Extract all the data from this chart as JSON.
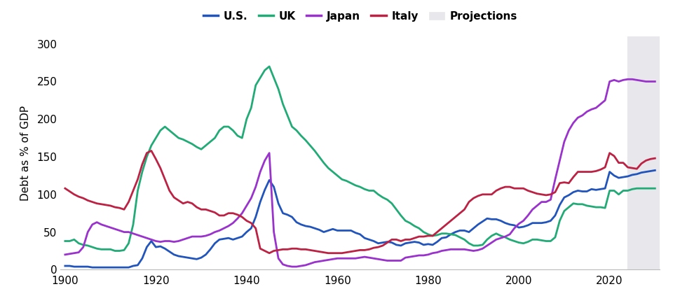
{
  "ylabel": "Debt as % of GDP",
  "colors": {
    "US": "#2255bb",
    "UK": "#22aa77",
    "Japan": "#9933cc",
    "Italy": "#bb2244"
  },
  "projection_start": 2024,
  "projection_end": 2031,
  "projection_color": "#e8e8ec",
  "ylim": [
    0,
    310
  ],
  "xlim": [
    1899,
    2031
  ],
  "yticks": [
    0,
    50,
    100,
    150,
    200,
    250,
    300
  ],
  "xticks": [
    1900,
    1920,
    1940,
    1960,
    1980,
    2000,
    2020
  ],
  "US": {
    "years": [
      1900,
      1901,
      1902,
      1903,
      1904,
      1905,
      1906,
      1907,
      1908,
      1909,
      1910,
      1911,
      1912,
      1913,
      1914,
      1915,
      1916,
      1917,
      1918,
      1919,
      1920,
      1921,
      1922,
      1923,
      1924,
      1925,
      1926,
      1927,
      1928,
      1929,
      1930,
      1931,
      1932,
      1933,
      1934,
      1935,
      1936,
      1937,
      1938,
      1939,
      1940,
      1941,
      1942,
      1943,
      1944,
      1945,
      1946,
      1947,
      1948,
      1949,
      1950,
      1951,
      1952,
      1953,
      1954,
      1955,
      1956,
      1957,
      1958,
      1959,
      1960,
      1961,
      1962,
      1963,
      1964,
      1965,
      1966,
      1967,
      1968,
      1969,
      1970,
      1971,
      1972,
      1973,
      1974,
      1975,
      1976,
      1977,
      1978,
      1979,
      1980,
      1981,
      1982,
      1983,
      1984,
      1985,
      1986,
      1987,
      1988,
      1989,
      1990,
      1991,
      1992,
      1993,
      1994,
      1995,
      1996,
      1997,
      1998,
      1999,
      2000,
      2001,
      2002,
      2003,
      2004,
      2005,
      2006,
      2007,
      2008,
      2009,
      2010,
      2011,
      2012,
      2013,
      2014,
      2015,
      2016,
      2017,
      2018,
      2019,
      2020,
      2021,
      2022,
      2023,
      2024,
      2025,
      2026,
      2027,
      2028,
      2029,
      2030
    ],
    "values": [
      5,
      5,
      4,
      4,
      4,
      4,
      3,
      3,
      3,
      3,
      3,
      3,
      3,
      3,
      3,
      5,
      6,
      15,
      30,
      38,
      30,
      31,
      28,
      24,
      20,
      18,
      17,
      16,
      15,
      14,
      16,
      20,
      27,
      35,
      40,
      41,
      42,
      40,
      42,
      44,
      50,
      55,
      70,
      90,
      106,
      119,
      110,
      88,
      75,
      73,
      70,
      63,
      60,
      58,
      57,
      55,
      53,
      50,
      52,
      54,
      52,
      52,
      52,
      52,
      49,
      47,
      42,
      40,
      38,
      35,
      36,
      37,
      36,
      33,
      32,
      35,
      36,
      37,
      36,
      33,
      34,
      33,
      37,
      42,
      43,
      47,
      50,
      52,
      52,
      50,
      55,
      60,
      64,
      68,
      67,
      67,
      65,
      62,
      60,
      59,
      56,
      57,
      59,
      62,
      62,
      62,
      63,
      65,
      72,
      86,
      96,
      99,
      103,
      105,
      104,
      104,
      107,
      106,
      107,
      108,
      130,
      125,
      122,
      123,
      124,
      126,
      127,
      129,
      130,
      131,
      132
    ]
  },
  "UK": {
    "years": [
      1900,
      1901,
      1902,
      1903,
      1904,
      1905,
      1906,
      1907,
      1908,
      1909,
      1910,
      1911,
      1912,
      1913,
      1914,
      1915,
      1916,
      1917,
      1918,
      1919,
      1920,
      1921,
      1922,
      1923,
      1924,
      1925,
      1926,
      1927,
      1928,
      1929,
      1930,
      1931,
      1932,
      1933,
      1934,
      1935,
      1936,
      1937,
      1938,
      1939,
      1940,
      1941,
      1942,
      1943,
      1944,
      1945,
      1946,
      1947,
      1948,
      1949,
      1950,
      1951,
      1952,
      1953,
      1954,
      1955,
      1956,
      1957,
      1958,
      1959,
      1960,
      1961,
      1962,
      1963,
      1964,
      1965,
      1966,
      1967,
      1968,
      1969,
      1970,
      1971,
      1972,
      1973,
      1974,
      1975,
      1976,
      1977,
      1978,
      1979,
      1980,
      1981,
      1982,
      1983,
      1984,
      1985,
      1986,
      1987,
      1988,
      1989,
      1990,
      1991,
      1992,
      1993,
      1994,
      1995,
      1996,
      1997,
      1998,
      1999,
      2000,
      2001,
      2002,
      2003,
      2004,
      2005,
      2006,
      2007,
      2008,
      2009,
      2010,
      2011,
      2012,
      2013,
      2014,
      2015,
      2016,
      2017,
      2018,
      2019,
      2020,
      2021,
      2022,
      2023,
      2024,
      2025,
      2026,
      2027,
      2028,
      2029,
      2030
    ],
    "values": [
      38,
      38,
      40,
      35,
      33,
      32,
      30,
      28,
      27,
      27,
      27,
      25,
      25,
      26,
      35,
      60,
      105,
      130,
      150,
      165,
      175,
      185,
      190,
      185,
      180,
      175,
      173,
      170,
      167,
      163,
      160,
      165,
      170,
      175,
      185,
      190,
      190,
      185,
      178,
      175,
      200,
      215,
      245,
      255,
      265,
      270,
      255,
      240,
      220,
      205,
      190,
      185,
      178,
      172,
      165,
      158,
      150,
      142,
      135,
      130,
      125,
      120,
      118,
      115,
      112,
      110,
      107,
      105,
      105,
      100,
      96,
      93,
      88,
      80,
      72,
      65,
      62,
      58,
      55,
      50,
      47,
      45,
      46,
      48,
      48,
      47,
      46,
      43,
      40,
      35,
      32,
      32,
      33,
      40,
      45,
      48,
      45,
      43,
      40,
      38,
      36,
      35,
      37,
      40,
      40,
      39,
      38,
      38,
      43,
      65,
      78,
      83,
      88,
      87,
      87,
      85,
      84,
      83,
      83,
      82,
      105,
      105,
      100,
      105,
      105,
      107,
      108,
      108,
      108,
      108,
      108
    ]
  },
  "Japan": {
    "years": [
      1900,
      1901,
      1902,
      1903,
      1904,
      1905,
      1906,
      1907,
      1908,
      1909,
      1910,
      1911,
      1912,
      1913,
      1914,
      1915,
      1916,
      1917,
      1918,
      1919,
      1920,
      1921,
      1922,
      1923,
      1924,
      1925,
      1926,
      1927,
      1928,
      1929,
      1930,
      1931,
      1932,
      1933,
      1934,
      1935,
      1936,
      1937,
      1938,
      1939,
      1940,
      1941,
      1942,
      1943,
      1944,
      1945,
      1946,
      1947,
      1948,
      1949,
      1950,
      1951,
      1952,
      1953,
      1954,
      1955,
      1956,
      1957,
      1958,
      1959,
      1960,
      1961,
      1962,
      1963,
      1964,
      1965,
      1966,
      1967,
      1968,
      1969,
      1970,
      1971,
      1972,
      1973,
      1974,
      1975,
      1976,
      1977,
      1978,
      1979,
      1980,
      1981,
      1982,
      1983,
      1984,
      1985,
      1986,
      1987,
      1988,
      1989,
      1990,
      1991,
      1992,
      1993,
      1994,
      1995,
      1996,
      1997,
      1998,
      1999,
      2000,
      2001,
      2002,
      2003,
      2004,
      2005,
      2006,
      2007,
      2008,
      2009,
      2010,
      2011,
      2012,
      2013,
      2014,
      2015,
      2016,
      2017,
      2018,
      2019,
      2020,
      2021,
      2022,
      2023,
      2024,
      2025,
      2026,
      2027,
      2028,
      2029,
      2030
    ],
    "values": [
      20,
      21,
      22,
      23,
      30,
      50,
      60,
      63,
      60,
      58,
      56,
      54,
      52,
      50,
      50,
      48,
      46,
      44,
      42,
      40,
      38,
      37,
      38,
      38,
      37,
      38,
      40,
      42,
      44,
      44,
      44,
      45,
      47,
      50,
      52,
      55,
      58,
      62,
      68,
      75,
      85,
      95,
      110,
      130,
      145,
      155,
      50,
      15,
      7,
      5,
      4,
      4,
      5,
      6,
      8,
      10,
      11,
      12,
      13,
      14,
      15,
      15,
      15,
      15,
      15,
      16,
      17,
      16,
      15,
      14,
      13,
      12,
      12,
      12,
      12,
      16,
      17,
      18,
      19,
      19,
      20,
      22,
      23,
      25,
      26,
      27,
      27,
      27,
      27,
      26,
      25,
      26,
      28,
      32,
      36,
      40,
      42,
      44,
      47,
      55,
      61,
      65,
      72,
      80,
      85,
      90,
      90,
      93,
      120,
      145,
      170,
      185,
      195,
      202,
      205,
      210,
      213,
      215,
      220,
      225,
      250,
      252,
      250,
      252,
      253,
      253,
      252,
      251,
      250,
      250,
      250
    ]
  },
  "Italy": {
    "years": [
      1900,
      1901,
      1902,
      1903,
      1904,
      1905,
      1906,
      1907,
      1908,
      1909,
      1910,
      1911,
      1912,
      1913,
      1914,
      1915,
      1916,
      1917,
      1918,
      1919,
      1920,
      1921,
      1922,
      1923,
      1924,
      1925,
      1926,
      1927,
      1928,
      1929,
      1930,
      1931,
      1932,
      1933,
      1934,
      1935,
      1936,
      1937,
      1938,
      1939,
      1940,
      1941,
      1942,
      1943,
      1944,
      1945,
      1946,
      1947,
      1948,
      1949,
      1950,
      1951,
      1952,
      1953,
      1954,
      1955,
      1956,
      1957,
      1958,
      1959,
      1960,
      1961,
      1962,
      1963,
      1964,
      1965,
      1966,
      1967,
      1968,
      1969,
      1970,
      1971,
      1972,
      1973,
      1974,
      1975,
      1976,
      1977,
      1978,
      1979,
      1980,
      1981,
      1982,
      1983,
      1984,
      1985,
      1986,
      1987,
      1988,
      1989,
      1990,
      1991,
      1992,
      1993,
      1994,
      1995,
      1996,
      1997,
      1998,
      1999,
      2000,
      2001,
      2002,
      2003,
      2004,
      2005,
      2006,
      2007,
      2008,
      2009,
      2010,
      2011,
      2012,
      2013,
      2014,
      2015,
      2016,
      2017,
      2018,
      2019,
      2020,
      2021,
      2022,
      2023,
      2024,
      2025,
      2026,
      2027,
      2028,
      2029,
      2030
    ],
    "values": [
      108,
      104,
      100,
      97,
      95,
      92,
      90,
      88,
      87,
      86,
      85,
      83,
      82,
      80,
      90,
      105,
      120,
      140,
      155,
      158,
      147,
      135,
      120,
      105,
      96,
      92,
      88,
      90,
      88,
      83,
      80,
      80,
      78,
      76,
      72,
      72,
      75,
      75,
      73,
      70,
      65,
      62,
      55,
      28,
      25,
      22,
      25,
      26,
      27,
      27,
      28,
      28,
      27,
      27,
      26,
      25,
      24,
      23,
      22,
      22,
      22,
      22,
      23,
      24,
      25,
      26,
      26,
      27,
      29,
      30,
      32,
      36,
      40,
      40,
      38,
      40,
      40,
      42,
      44,
      44,
      45,
      45,
      50,
      55,
      60,
      65,
      70,
      75,
      80,
      90,
      95,
      98,
      100,
      100,
      100,
      105,
      108,
      110,
      110,
      108,
      108,
      108,
      105,
      103,
      101,
      100,
      99,
      100,
      103,
      115,
      116,
      115,
      123,
      130,
      130,
      130,
      130,
      131,
      133,
      136,
      155,
      151,
      142,
      142,
      136,
      135,
      134,
      141,
      145,
      147,
      148
    ]
  }
}
